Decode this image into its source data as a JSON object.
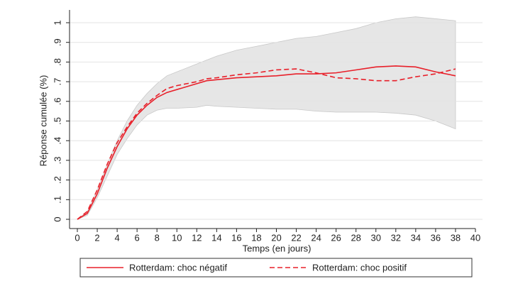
{
  "chart_data": {
    "type": "line",
    "xlabel": "Temps (en jours)",
    "ylabel": "Réponse cumulée (%)",
    "x": [
      0,
      1,
      2,
      3,
      4,
      5,
      6,
      7,
      8,
      9,
      10,
      12,
      13,
      14,
      16,
      18,
      20,
      22,
      24,
      26,
      28,
      30,
      32,
      34,
      36,
      38
    ],
    "series": [
      {
        "name": "Rotterdam: choc négatif",
        "color": "#e8202a",
        "dash": false,
        "values": [
          0,
          0.03,
          0.13,
          0.26,
          0.37,
          0.46,
          0.53,
          0.58,
          0.62,
          0.645,
          0.66,
          0.69,
          0.705,
          0.71,
          0.72,
          0.725,
          0.73,
          0.74,
          0.74,
          0.745,
          0.76,
          0.775,
          0.78,
          0.775,
          0.75,
          0.73
        ]
      },
      {
        "name": "Rotterdam: choc positif",
        "color": "#e8202a",
        "dash": true,
        "values": [
          0,
          0.04,
          0.15,
          0.28,
          0.39,
          0.47,
          0.54,
          0.59,
          0.63,
          0.665,
          0.68,
          0.7,
          0.715,
          0.72,
          0.735,
          0.745,
          0.76,
          0.765,
          0.745,
          0.72,
          0.715,
          0.705,
          0.705,
          0.725,
          0.74,
          0.765
        ]
      }
    ],
    "band": {
      "color": "#e6e6e6",
      "upper": [
        0,
        0.04,
        0.15,
        0.28,
        0.4,
        0.5,
        0.58,
        0.64,
        0.69,
        0.73,
        0.75,
        0.79,
        0.81,
        0.83,
        0.86,
        0.88,
        0.9,
        0.92,
        0.93,
        0.95,
        0.97,
        1.0,
        1.02,
        1.03,
        1.02,
        1.01
      ],
      "lower": [
        0,
        0.02,
        0.11,
        0.22,
        0.33,
        0.41,
        0.48,
        0.53,
        0.555,
        0.565,
        0.565,
        0.57,
        0.58,
        0.575,
        0.57,
        0.565,
        0.56,
        0.56,
        0.55,
        0.545,
        0.545,
        0.545,
        0.54,
        0.53,
        0.5,
        0.46
      ]
    },
    "xlim": [
      0,
      40
    ],
    "xticks": [
      0,
      2,
      4,
      6,
      8,
      10,
      12,
      14,
      16,
      18,
      20,
      22,
      24,
      26,
      28,
      30,
      32,
      34,
      36,
      38,
      40
    ],
    "ylim": [
      0,
      1
    ],
    "yticks": [
      0,
      {
        "value": 0.1,
        "label": ".1"
      },
      {
        "value": 0.2,
        "label": ".2"
      },
      {
        "value": 0.3,
        "label": ".3"
      },
      {
        "value": 0.4,
        "label": ".4"
      },
      {
        "value": 0.5,
        "label": ".5"
      },
      {
        "value": 0.6,
        "label": ".6"
      },
      {
        "value": 0.7,
        "label": ".7"
      },
      {
        "value": 0.8,
        "label": ".8"
      },
      {
        "value": 0.9,
        "label": ".9"
      },
      1
    ],
    "grid": true
  }
}
